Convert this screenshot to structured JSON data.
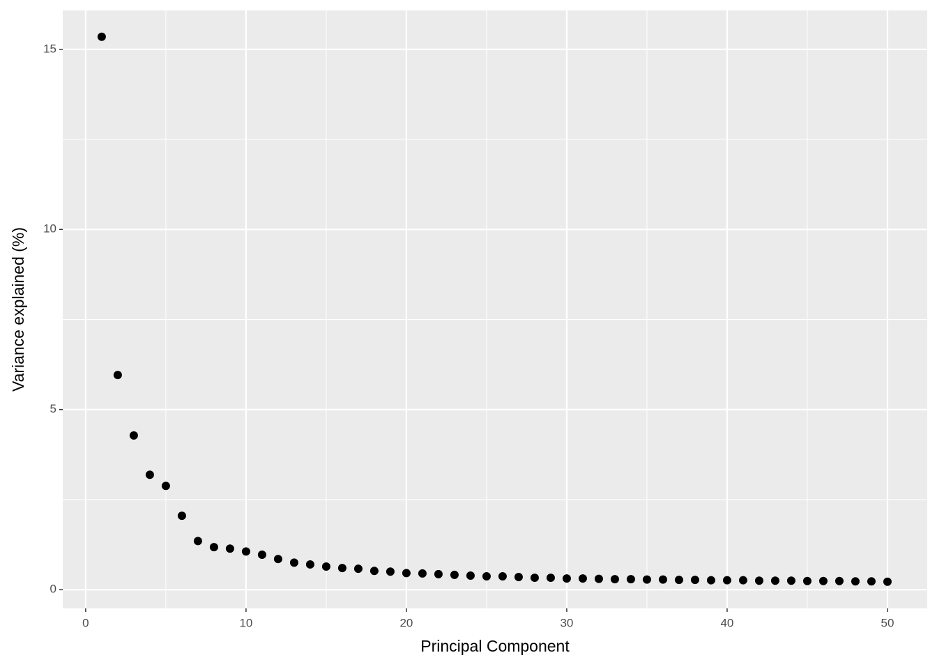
{
  "chart_data": {
    "type": "scatter",
    "x_label": "Principal Component",
    "y_label": "Variance explained (%)",
    "x": [
      1,
      2,
      3,
      4,
      5,
      6,
      7,
      8,
      9,
      10,
      11,
      12,
      13,
      14,
      15,
      16,
      17,
      18,
      19,
      20,
      21,
      22,
      23,
      24,
      25,
      26,
      27,
      28,
      29,
      30,
      31,
      32,
      33,
      34,
      35,
      36,
      37,
      38,
      39,
      40,
      41,
      42,
      43,
      44,
      45,
      46,
      47,
      48,
      49,
      50
    ],
    "values": [
      15.35,
      5.96,
      4.28,
      3.19,
      2.88,
      2.05,
      1.35,
      1.18,
      1.14,
      1.06,
      0.97,
      0.85,
      0.75,
      0.7,
      0.64,
      0.6,
      0.58,
      0.52,
      0.5,
      0.46,
      0.45,
      0.43,
      0.41,
      0.39,
      0.37,
      0.37,
      0.35,
      0.33,
      0.33,
      0.31,
      0.31,
      0.3,
      0.29,
      0.29,
      0.28,
      0.28,
      0.27,
      0.27,
      0.26,
      0.26,
      0.26,
      0.25,
      0.25,
      0.25,
      0.24,
      0.24,
      0.24,
      0.23,
      0.23,
      0.22
    ],
    "color": "#000000",
    "xlim": [
      -1.43,
      52.48
    ],
    "ylim": [
      -0.52,
      16.08
    ],
    "xticks": [
      0,
      10,
      20,
      30,
      40,
      50
    ],
    "yticks": [
      0,
      5,
      10,
      15
    ],
    "grid": true,
    "minor_grid": true
  }
}
